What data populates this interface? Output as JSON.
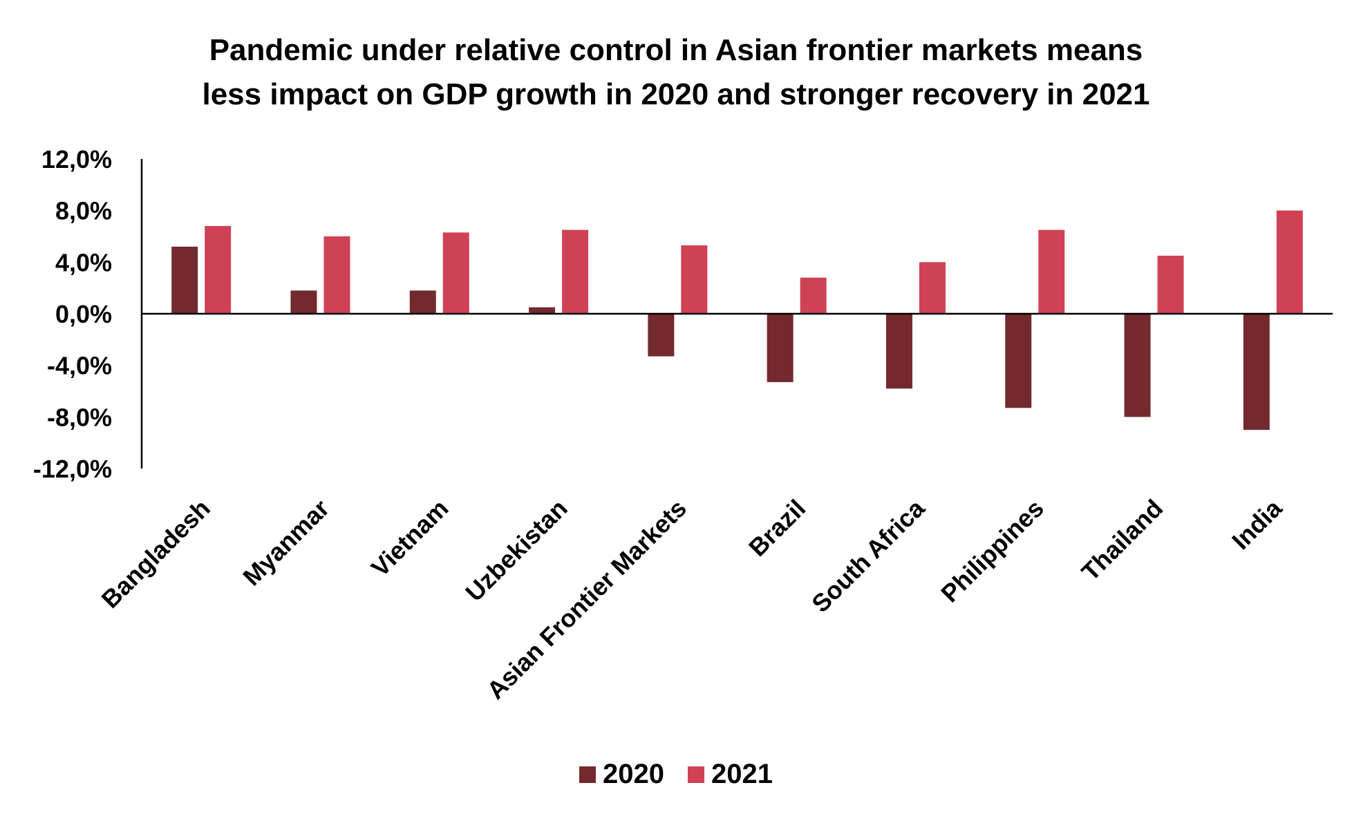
{
  "chart_data": {
    "type": "bar",
    "title": "Pandemic under relative control in Asian frontier markets means less impact on GDP growth in 2020 and stronger recovery in 2021",
    "title_lines": [
      "Pandemic under relative control in Asian frontier markets means",
      "less impact on GDP growth in 2020 and stronger recovery in 2021"
    ],
    "xlabel": "",
    "ylabel": "",
    "categories": [
      "Bangladesh",
      "Myanmar",
      "Vietnam",
      "Uzbekistan",
      "Asian Frontier Markets",
      "Brazil",
      "South Africa",
      "Philippines",
      "Thailand",
      "India"
    ],
    "series": [
      {
        "name": "2020",
        "color": "#722a2e",
        "values": [
          5.2,
          1.8,
          1.8,
          0.5,
          -3.3,
          -5.3,
          -5.8,
          -7.3,
          -8.0,
          -9.0
        ]
      },
      {
        "name": "2021",
        "color": "#cf4256",
        "values": [
          6.8,
          6.0,
          6.3,
          6.5,
          5.3,
          2.8,
          4.0,
          6.5,
          4.5,
          8.0
        ]
      }
    ],
    "ylim": [
      -12,
      12
    ],
    "yticks": [
      12,
      8,
      4,
      0,
      -4,
      -8,
      -12
    ],
    "ytick_labels": [
      "12,0%",
      "8,0%",
      "4,0%",
      "0,0%",
      "-4,0%",
      "-8,0%",
      "-12,0%"
    ],
    "grid": false,
    "legend_position": "bottom-center"
  }
}
